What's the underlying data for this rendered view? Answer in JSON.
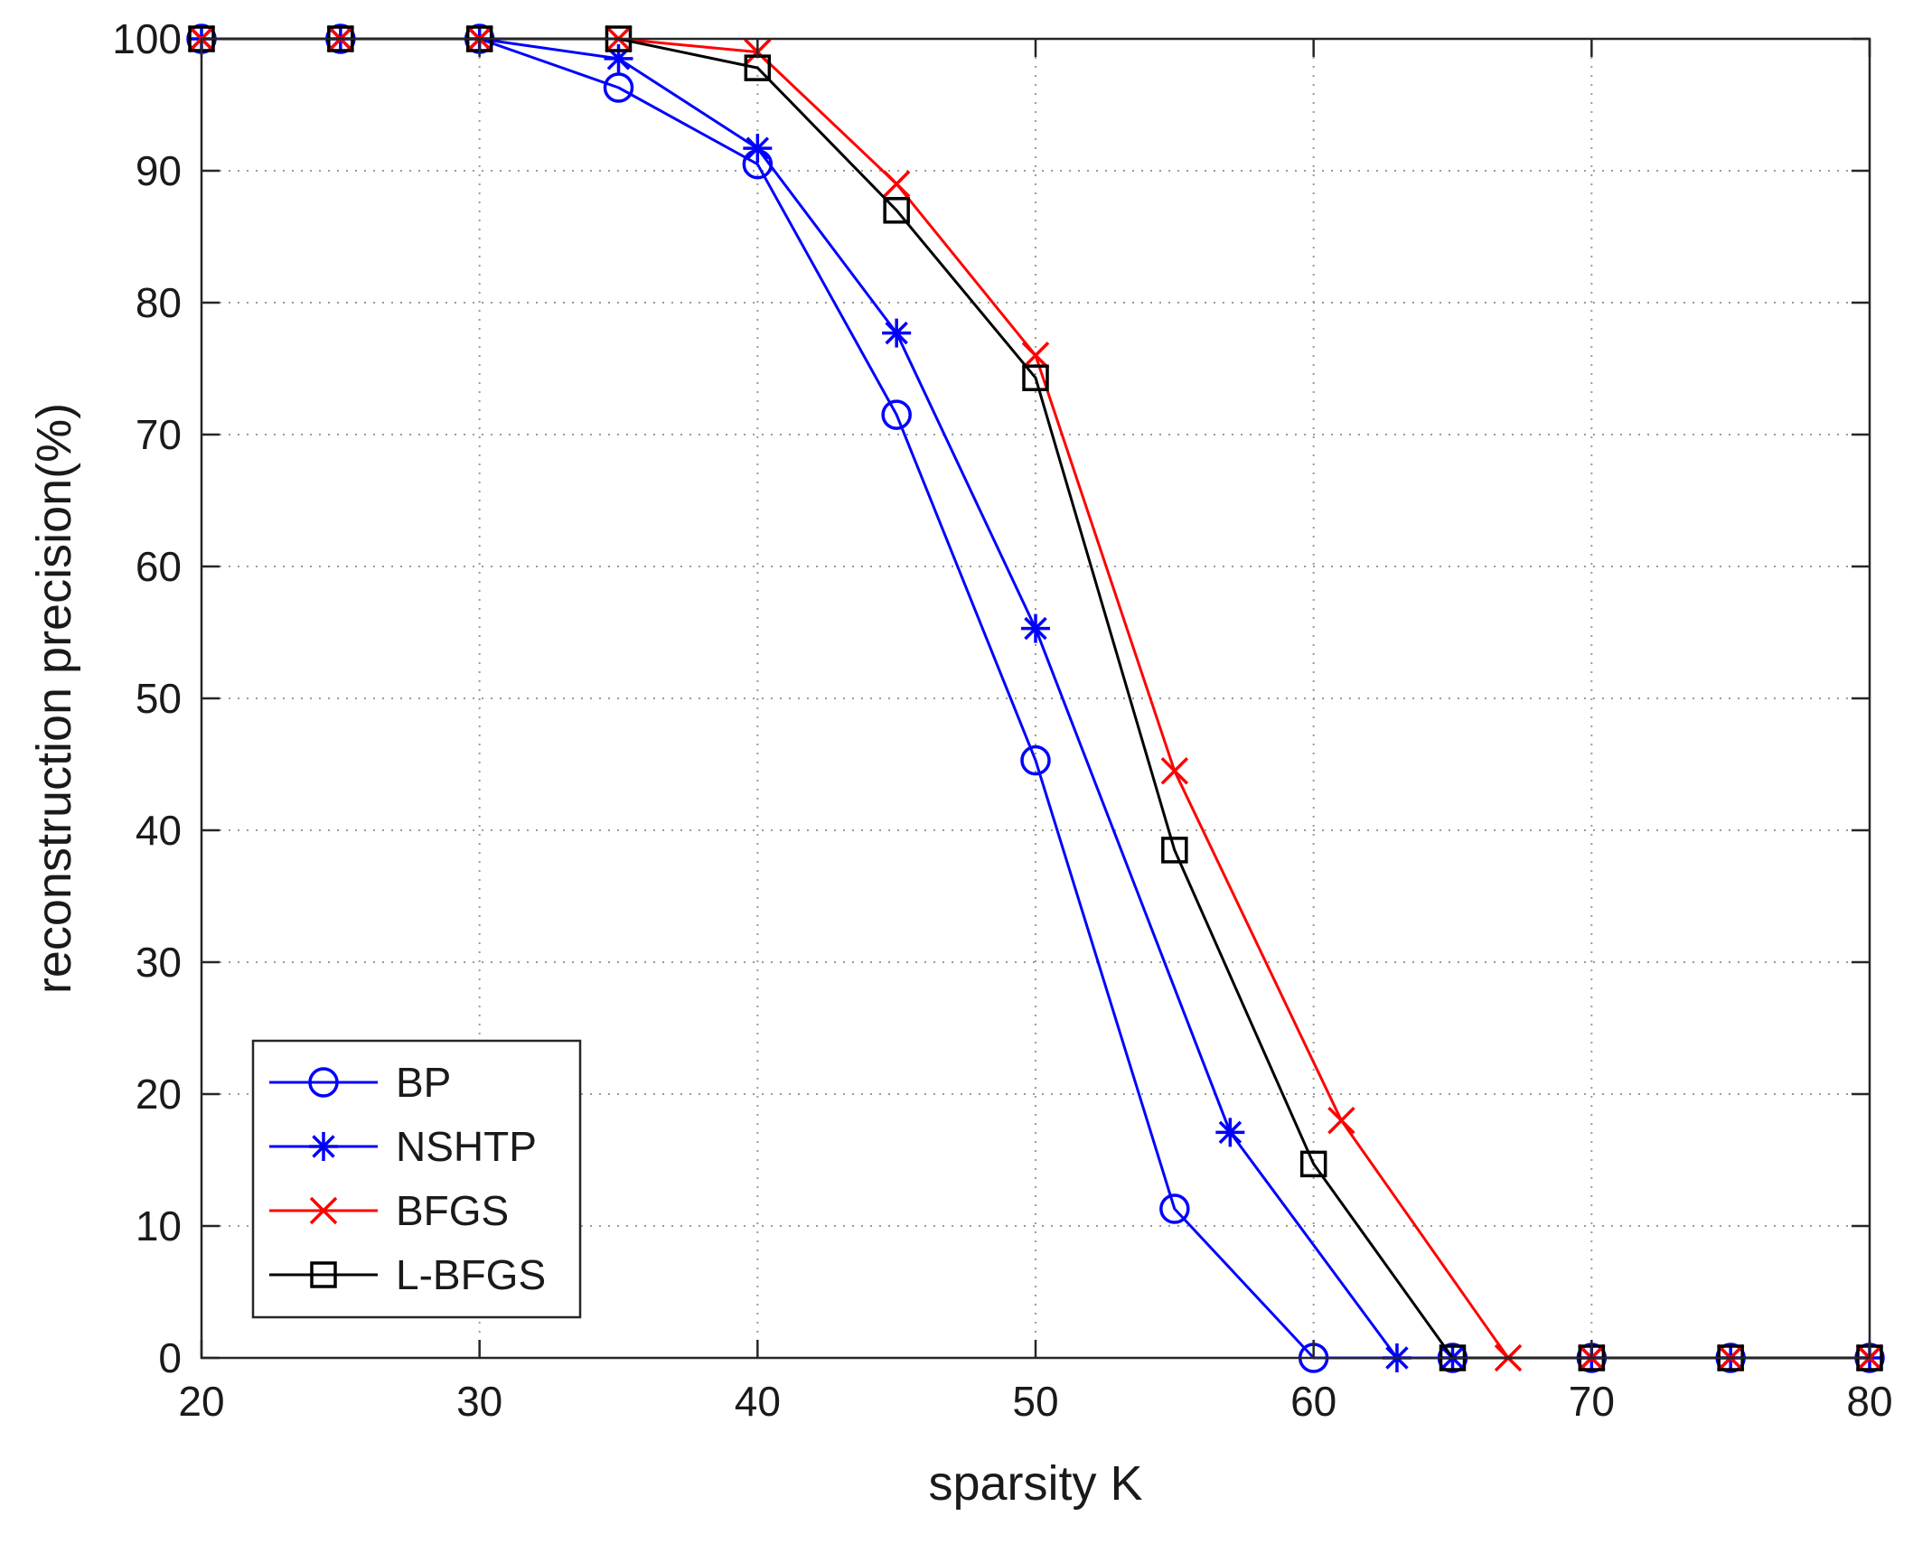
{
  "chart_data": {
    "type": "line",
    "title": "",
    "xlabel": "sparsity K",
    "ylabel": "reconstruction precision(%)",
    "xlim": [
      20,
      80
    ],
    "ylim": [
      0,
      100
    ],
    "xticks": [
      20,
      30,
      40,
      50,
      60,
      70,
      80
    ],
    "yticks": [
      0,
      10,
      20,
      30,
      40,
      50,
      60,
      70,
      80,
      90,
      100
    ],
    "grid": true,
    "legend_position": "bottom-left",
    "series": [
      {
        "name": "BP",
        "color": "#0000ff",
        "marker": "circle",
        "x": [
          20,
          25,
          30,
          35,
          40,
          45,
          50,
          55,
          60,
          65,
          70,
          75,
          80
        ],
        "y": [
          100,
          100,
          100,
          96.3,
          90.5,
          71.5,
          45.3,
          11.3,
          0,
          0,
          0,
          0,
          0
        ]
      },
      {
        "name": "NSHTP",
        "color": "#0000ff",
        "marker": "asterisk",
        "x": [
          20,
          25,
          30,
          35,
          40,
          45,
          50,
          57,
          63,
          65,
          70,
          75,
          80
        ],
        "y": [
          100,
          100,
          100,
          98.5,
          91.7,
          77.7,
          55.3,
          17.1,
          0,
          0,
          0,
          0,
          0
        ]
      },
      {
        "name": "BFGS",
        "color": "#ff0000",
        "marker": "x",
        "x": [
          20,
          25,
          30,
          35,
          40,
          45,
          50,
          55,
          61,
          67,
          70,
          75,
          80
        ],
        "y": [
          100,
          100,
          100,
          100,
          99,
          89,
          76,
          44.5,
          18,
          0,
          0,
          0,
          0
        ]
      },
      {
        "name": "L-BFGS",
        "color": "#000000",
        "marker": "square",
        "x": [
          20,
          25,
          30,
          35,
          40,
          45,
          50,
          55,
          60,
          65,
          70,
          75,
          80
        ],
        "y": [
          100,
          100,
          100,
          100,
          97.8,
          87,
          74.3,
          38.5,
          14.7,
          0,
          0,
          0,
          0
        ]
      }
    ]
  }
}
